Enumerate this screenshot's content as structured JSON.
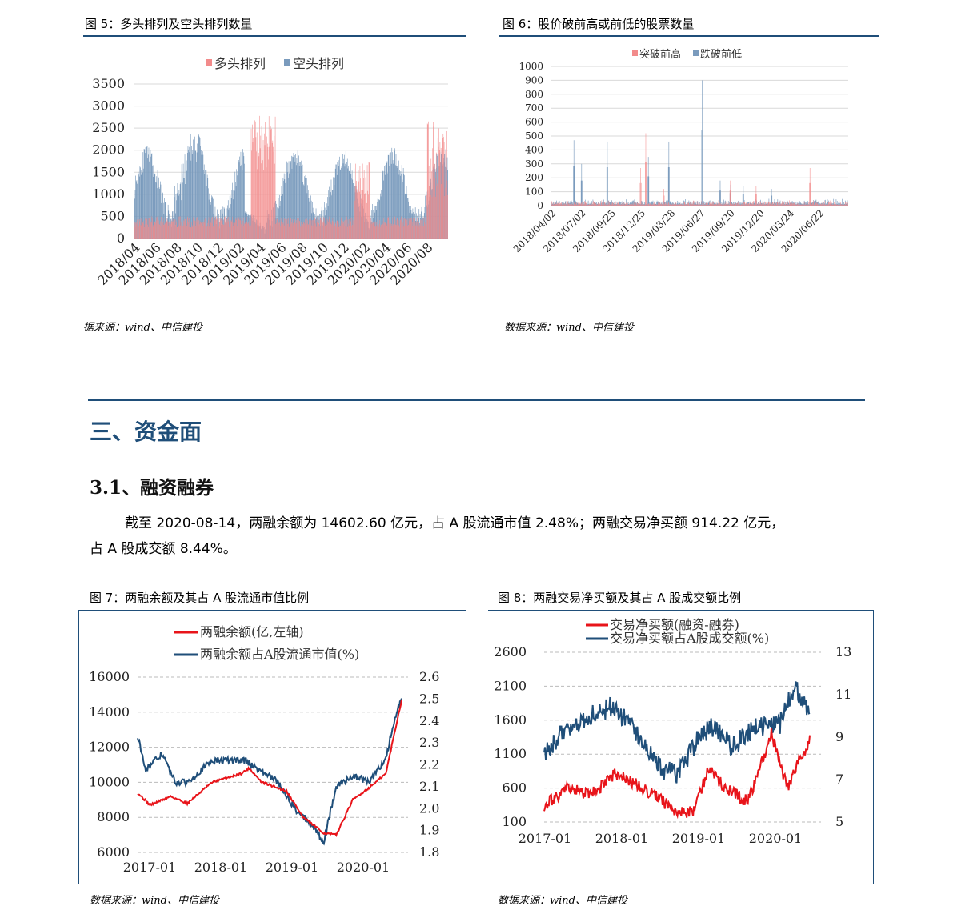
{
  "fig5": {
    "title": "图 5：多头排列及空头排列数量",
    "source": "据来源：wind、中信建投",
    "chart_data": {
      "type": "bar",
      "title": "",
      "series": [
        {
          "name": "多头排列",
          "color": "#f28b8b"
        },
        {
          "name": "空头排列",
          "color": "#7a9bbd"
        }
      ],
      "ylim": [
        0,
        3500
      ],
      "yticks": [
        "0",
        "500",
        "1000",
        "1500",
        "2000",
        "2500",
        "3000",
        "3500"
      ],
      "xticks": [
        "2018/04",
        "2018/06",
        "2018/08",
        "2018/10",
        "2018/12",
        "2019/02",
        "2019/04",
        "2019/06",
        "2019/08",
        "2019/10",
        "2019/12",
        "2020/02",
        "2020/04",
        "2020/06",
        "2020/08"
      ],
      "grid": true,
      "legend": "top"
    }
  },
  "fig6": {
    "title": "图 6：股价破前高或前低的股票数量",
    "source": "数据来源：wind、中信建投",
    "chart_data": {
      "type": "bar",
      "series": [
        {
          "name": "突破前高",
          "color": "#f28b8b"
        },
        {
          "name": "跌破前低",
          "color": "#7a9bbd"
        }
      ],
      "ylim": [
        0,
        1000
      ],
      "yticks": [
        "0",
        "100",
        "200",
        "300",
        "400",
        "500",
        "600",
        "700",
        "800",
        "900",
        "1000"
      ],
      "xticks": [
        "2018/04/02",
        "2018/07/02",
        "2018/09/25",
        "2018/12/25",
        "2019/03/28",
        "2019/06/27",
        "2019/09/20",
        "2019/12/20",
        "2020/03/24",
        "2020/06/22"
      ],
      "grid": true,
      "legend": "top"
    }
  },
  "section": {
    "h1": "三、资金面",
    "h2": "3.1、融资融券",
    "para1": "截至 2020-08-14，两融余额为 14602.60 亿元，占 A 股流通市值 2.48%；两融交易净买额 914.22 亿元，",
    "para2": "占 A 股成交额 8.44%。"
  },
  "fig7": {
    "title": "图 7：两融余额及其占 A 股流通市值比例",
    "source": "数据来源：wind、中信建投",
    "chart_data": {
      "type": "line",
      "series": [
        {
          "name": "两融余额(亿,左轴)",
          "color": "#e8141a",
          "axis": "left"
        },
        {
          "name": "两融余额占A股流通市值(%)",
          "color": "#1f4e79",
          "axis": "right"
        }
      ],
      "ylim_left": [
        6000,
        16000
      ],
      "yticks_left": [
        "6000",
        "8000",
        "10000",
        "12000",
        "14000",
        "16000"
      ],
      "ylim_right": [
        1.8,
        2.6
      ],
      "yticks_right": [
        "1.8",
        "1.9",
        "2.0",
        "2.1",
        "2.2",
        "2.3",
        "2.4",
        "2.5",
        "2.6"
      ],
      "xticks": [
        "2017-01",
        "2018-01",
        "2019-01",
        "2020-01"
      ],
      "grid": true,
      "legend": "top"
    }
  },
  "fig8": {
    "title": "图 8：两融交易净买额及其占 A 股成交额比例",
    "source": "数据来源：wind、中信建投",
    "chart_data": {
      "type": "line",
      "series": [
        {
          "name": "交易净买额(融资-融券)",
          "color": "#e8141a",
          "axis": "left"
        },
        {
          "name": "交易净买额占A股成交额(%)",
          "color": "#1f4e79",
          "axis": "right"
        }
      ],
      "ylim_left": [
        100,
        2600
      ],
      "yticks_left": [
        "100",
        "600",
        "1100",
        "1600",
        "2100",
        "2600"
      ],
      "ylim_right": [
        5,
        13
      ],
      "yticks_right": [
        "5",
        "7",
        "9",
        "11",
        "13"
      ],
      "xticks": [
        "2017-01",
        "2018-01",
        "2019-01",
        "2020-01"
      ],
      "grid": true,
      "legend": "top"
    }
  }
}
